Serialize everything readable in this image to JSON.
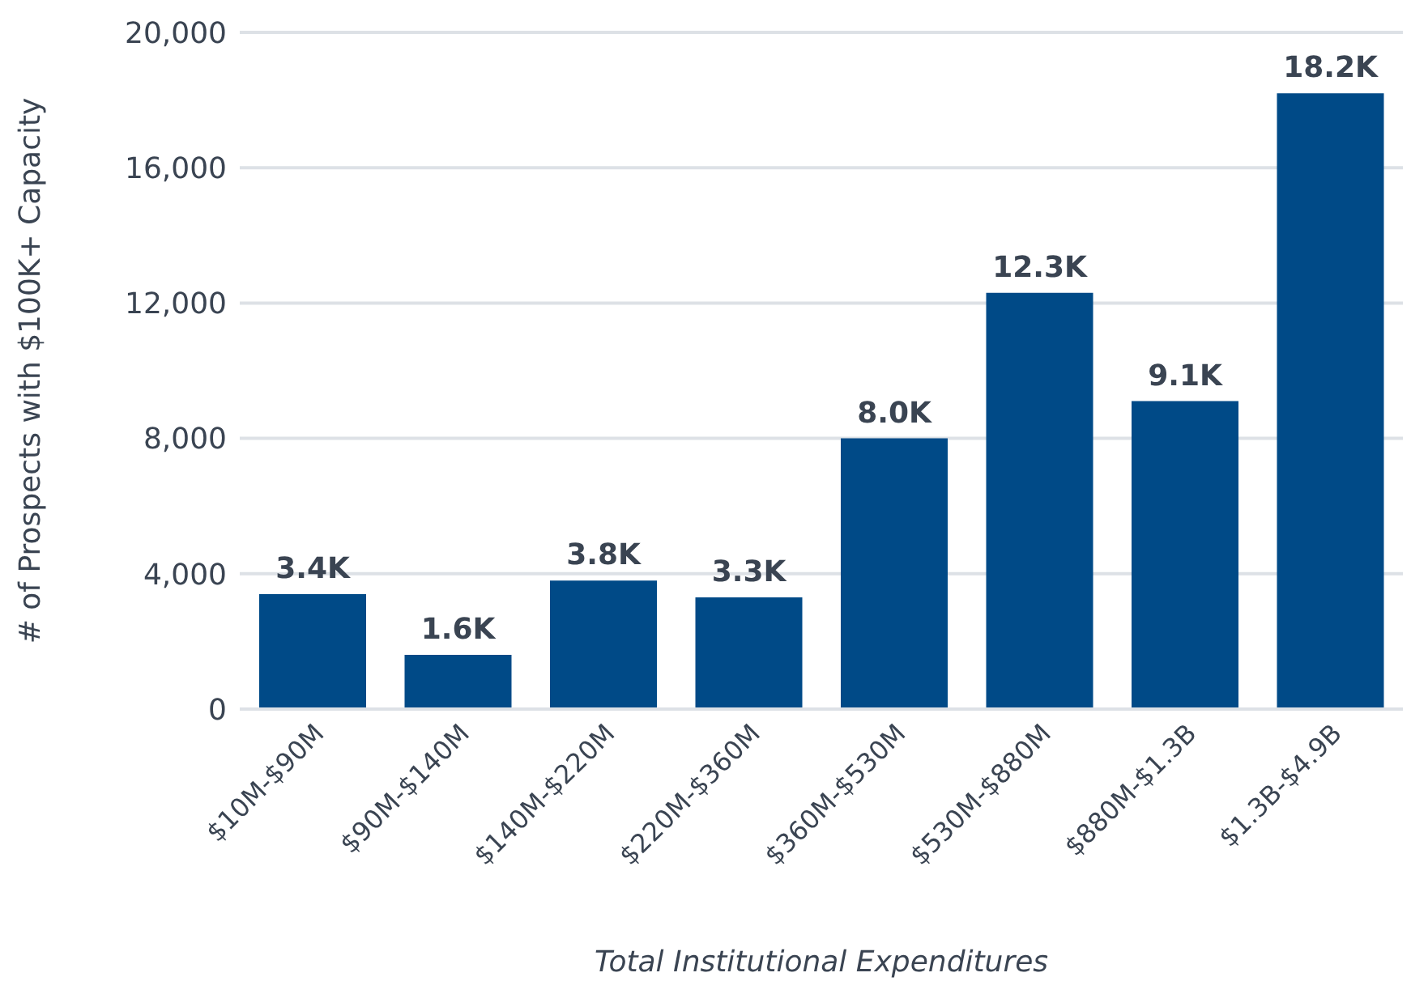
{
  "chart_data": {
    "type": "bar",
    "xlabel": "Total Institutional Expenditures",
    "ylabel": "# of Prospects with $100K+ Capacity",
    "categories": [
      "$10M-$90M",
      "$90M-$140M",
      "$140M-$220M",
      "$220M-$360M",
      "$360M-$530M",
      "$530M-$880M",
      "$880M-$1.3B",
      "$1.3B-$4.9B"
    ],
    "values": [
      3400,
      1600,
      3800,
      3300,
      8000,
      12300,
      9100,
      18200
    ],
    "value_labels": [
      "3.4K",
      "1.6K",
      "3.8K",
      "3.3K",
      "8.0K",
      "12.3K",
      "9.1K",
      "18.2K"
    ],
    "color": "#004a87",
    "ylim": [
      0,
      20000
    ],
    "yticks": [
      {
        "value": 0,
        "label": "0"
      },
      {
        "value": 4000,
        "label": "4,000"
      },
      {
        "value": 8000,
        "label": "8,000"
      },
      {
        "value": 12000,
        "label": "12,000"
      },
      {
        "value": 16000,
        "label": "16,000"
      },
      {
        "value": 20000,
        "label": "20,000"
      }
    ],
    "grid": "y"
  }
}
